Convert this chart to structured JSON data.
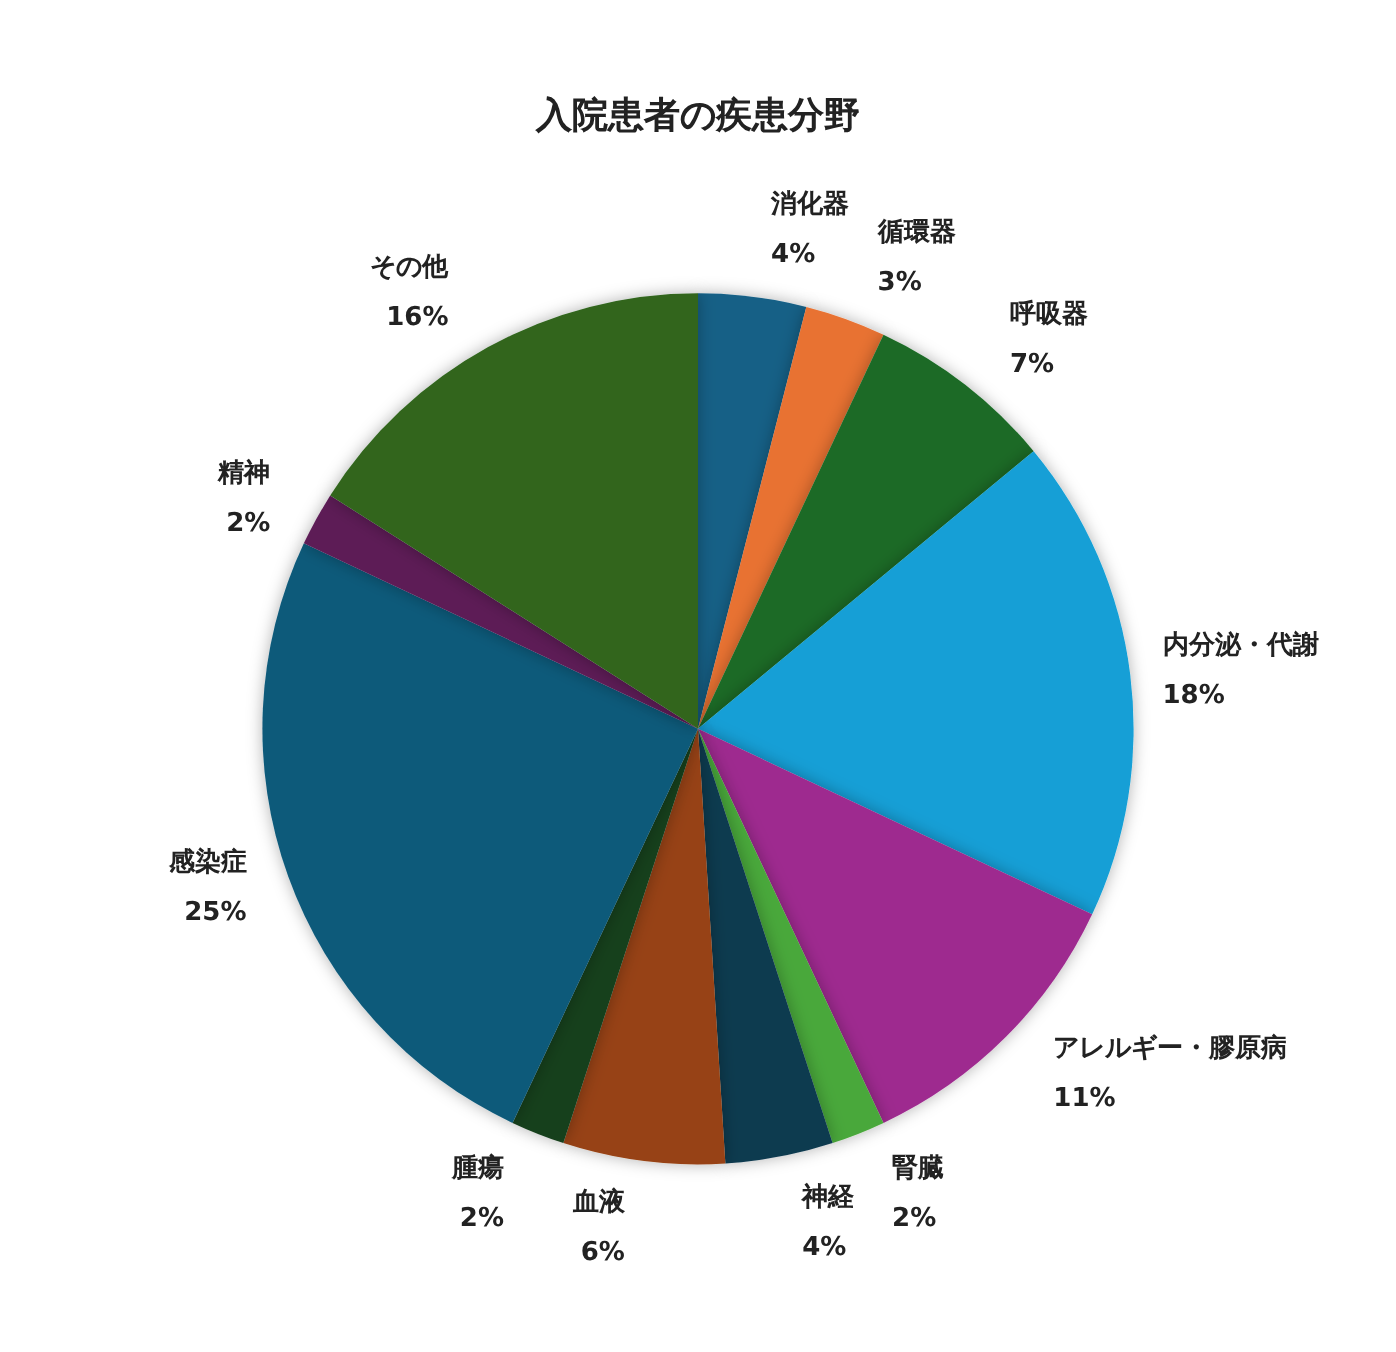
{
  "chart_data": {
    "type": "pie",
    "title": "入院患者の疾患分野",
    "categories": [
      "消化器",
      "循環器",
      "呼吸器",
      "内分泌・代謝",
      "アレルギー・膠原病",
      "腎臓",
      "神経",
      "血液",
      "腫瘍",
      "感染症",
      "精神",
      "その他"
    ],
    "values": [
      4,
      3,
      7,
      18,
      11,
      2,
      4,
      6,
      2,
      25,
      2,
      16
    ],
    "value_labels": [
      "4%",
      "3%",
      "7%",
      "18%",
      "11%",
      "2%",
      "4%",
      "6%",
      "2%",
      "25%",
      "2%",
      "16%"
    ],
    "colors": [
      "#176086",
      "#e87233",
      "#1b6b26",
      "#129fd6",
      "#9e2b8f",
      "#4aa83a",
      "#0e3a50",
      "#974313",
      "#173f1e",
      "#0e5a7a",
      "#5d1b56",
      "#30651f"
    ],
    "legend": false
  }
}
